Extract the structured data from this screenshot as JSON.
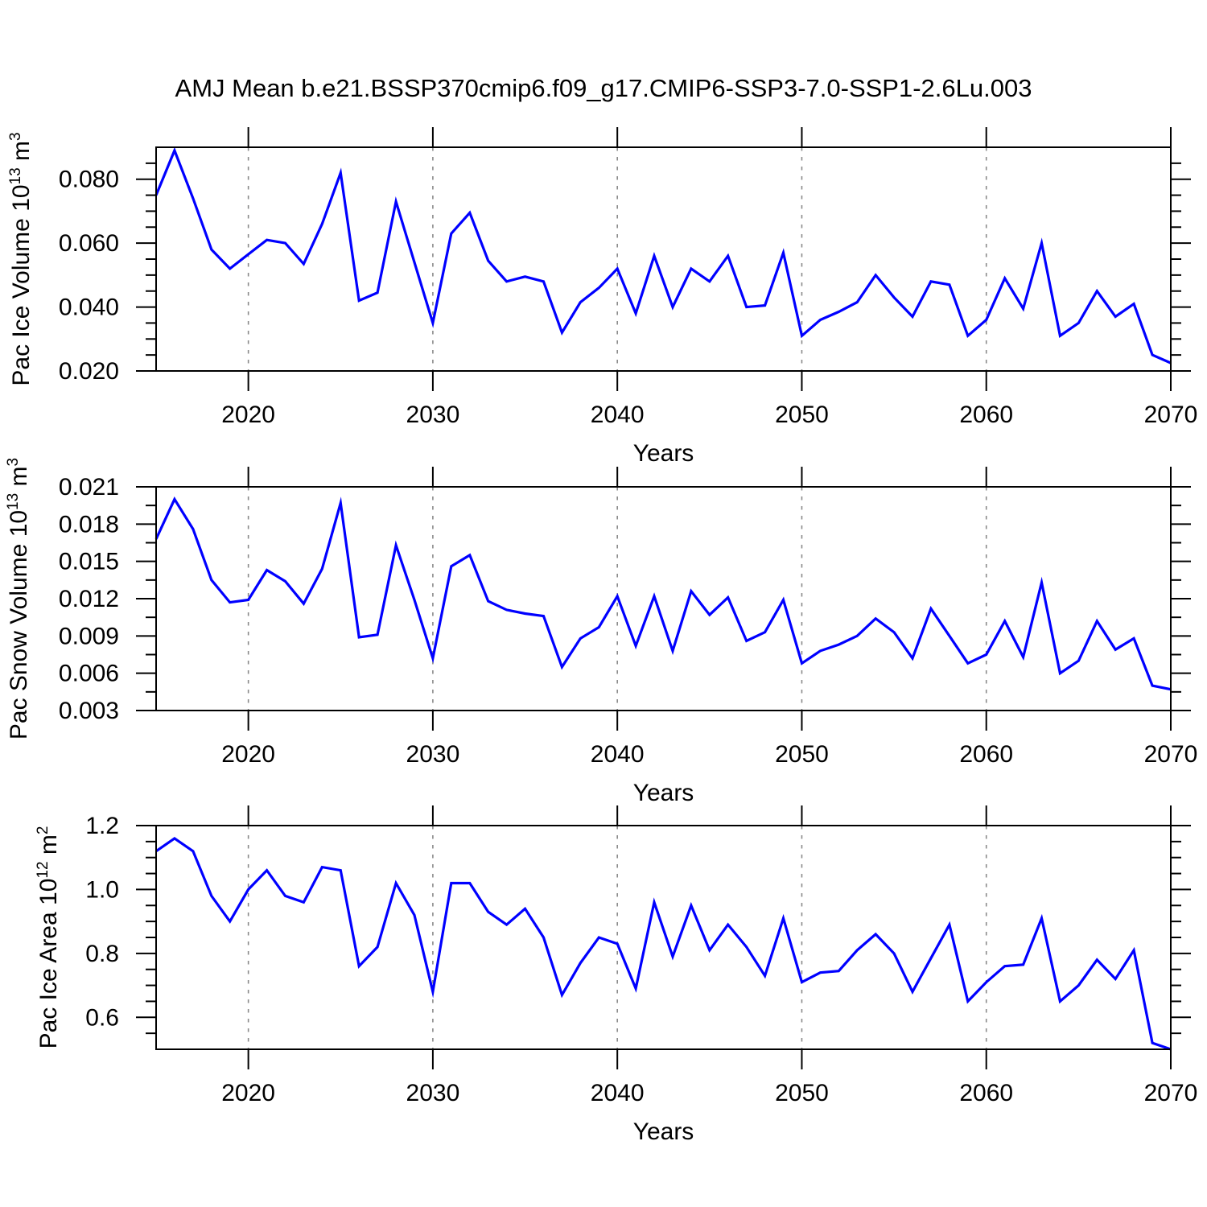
{
  "page": {
    "title": "AMJ Mean b.e21.BSSP370cmip6.f09_g17.CMIP6-SSP3-7.0-SSP1-2.6Lu.003"
  },
  "style": {
    "series_color": "#0000ff",
    "grid_color": "#8a8a8a",
    "axis_color": "#000000"
  },
  "chart_data": [
    {
      "type": "line",
      "name": "pac-ice-volume",
      "xlabel": "Years",
      "ylabel": {
        "prefix": "Pac Ice Volume 10",
        "sup1": "13",
        "mid": " m",
        "sup2": "3"
      },
      "ylim": [
        0.02,
        0.09
      ],
      "yticks": [
        0.02,
        0.04,
        0.06,
        0.08
      ],
      "ytick_labels": [
        "0.020",
        "0.040",
        "0.060",
        "0.080"
      ],
      "yminor_step": 0.005,
      "xlim": [
        2015,
        2070
      ],
      "xticks": [
        2020,
        2030,
        2040,
        2050,
        2060,
        2070
      ],
      "xtick_labels": [
        "2020",
        "2030",
        "2040",
        "2050",
        "2060",
        "2070"
      ],
      "xminor_step": 2,
      "grid_x": [
        2020,
        2030,
        2040,
        2050,
        2060
      ],
      "grid_on": true,
      "legend": "none",
      "years": [
        2015,
        2016,
        2017,
        2018,
        2019,
        2020,
        2021,
        2022,
        2023,
        2024,
        2025,
        2026,
        2027,
        2028,
        2029,
        2030,
        2031,
        2032,
        2033,
        2034,
        2035,
        2036,
        2037,
        2038,
        2039,
        2040,
        2041,
        2042,
        2043,
        2044,
        2045,
        2046,
        2047,
        2048,
        2049,
        2050,
        2051,
        2052,
        2053,
        2054,
        2055,
        2056,
        2057,
        2058,
        2059,
        2060,
        2061,
        2062,
        2063,
        2064,
        2065,
        2066,
        2067,
        2068,
        2069,
        2070
      ],
      "values": [
        0.075,
        0.089,
        0.074,
        0.058,
        0.052,
        0.0565,
        0.061,
        0.06,
        0.0535,
        0.066,
        0.082,
        0.042,
        0.0445,
        0.073,
        0.054,
        0.035,
        0.063,
        0.0695,
        0.0545,
        0.048,
        0.0495,
        0.048,
        0.032,
        0.0415,
        0.046,
        0.052,
        0.038,
        0.056,
        0.04,
        0.052,
        0.048,
        0.056,
        0.04,
        0.0405,
        0.057,
        0.031,
        0.036,
        0.0385,
        0.0415,
        0.05,
        0.043,
        0.037,
        0.048,
        0.047,
        0.031,
        0.036,
        0.049,
        0.0395,
        0.06,
        0.031,
        0.035,
        0.045,
        0.037,
        0.041,
        0.025,
        0.0225
      ]
    },
    {
      "type": "line",
      "name": "pac-snow-volume",
      "xlabel": "Years",
      "ylabel": {
        "prefix": "Pac Snow Volume 10",
        "sup1": "13",
        "mid": " m",
        "sup2": "3"
      },
      "ylim": [
        0.003,
        0.021
      ],
      "yticks": [
        0.003,
        0.006,
        0.009,
        0.012,
        0.015,
        0.018,
        0.021
      ],
      "ytick_labels": [
        "0.003",
        "0.006",
        "0.009",
        "0.012",
        "0.015",
        "0.018",
        "0.021"
      ],
      "yminor_step": 0.0015,
      "xlim": [
        2015,
        2070
      ],
      "xticks": [
        2020,
        2030,
        2040,
        2050,
        2060,
        2070
      ],
      "xtick_labels": [
        "2020",
        "2030",
        "2040",
        "2050",
        "2060",
        "2070"
      ],
      "xminor_step": 2,
      "grid_x": [
        2020,
        2030,
        2040,
        2050,
        2060
      ],
      "grid_on": true,
      "legend": "none",
      "years": [
        2015,
        2016,
        2017,
        2018,
        2019,
        2020,
        2021,
        2022,
        2023,
        2024,
        2025,
        2026,
        2027,
        2028,
        2029,
        2030,
        2031,
        2032,
        2033,
        2034,
        2035,
        2036,
        2037,
        2038,
        2039,
        2040,
        2041,
        2042,
        2043,
        2044,
        2045,
        2046,
        2047,
        2048,
        2049,
        2050,
        2051,
        2052,
        2053,
        2054,
        2055,
        2056,
        2057,
        2058,
        2059,
        2060,
        2061,
        2062,
        2063,
        2064,
        2065,
        2066,
        2067,
        2068,
        2069,
        2070
      ],
      "values": [
        0.0168,
        0.02,
        0.0176,
        0.0135,
        0.0117,
        0.0119,
        0.0143,
        0.0134,
        0.0116,
        0.0144,
        0.0197,
        0.0089,
        0.0091,
        0.0163,
        0.0119,
        0.0072,
        0.0146,
        0.0155,
        0.0118,
        0.0111,
        0.0108,
        0.0106,
        0.0065,
        0.0088,
        0.0097,
        0.0122,
        0.0082,
        0.0122,
        0.0078,
        0.0126,
        0.0107,
        0.0121,
        0.0086,
        0.0093,
        0.0119,
        0.0068,
        0.0078,
        0.0083,
        0.009,
        0.0104,
        0.0093,
        0.0072,
        0.0112,
        0.009,
        0.0068,
        0.0075,
        0.0102,
        0.0073,
        0.0133,
        0.006,
        0.007,
        0.0102,
        0.0079,
        0.0088,
        0.005,
        0.0047
      ]
    },
    {
      "type": "line",
      "name": "pac-ice-area",
      "xlabel": "Years",
      "ylabel": {
        "prefix": "Pac Ice Area 10",
        "sup1": "12",
        "mid": " m",
        "sup2": "2"
      },
      "ylim": [
        0.5,
        1.2
      ],
      "yticks": [
        0.6,
        0.8,
        1.0,
        1.2
      ],
      "ytick_labels": [
        "0.6",
        "0.8",
        "1.0",
        "1.2"
      ],
      "yminor_step": 0.05,
      "xlim": [
        2015,
        2070
      ],
      "xticks": [
        2020,
        2030,
        2040,
        2050,
        2060,
        2070
      ],
      "xtick_labels": [
        "2020",
        "2030",
        "2040",
        "2050",
        "2060",
        "2070"
      ],
      "xminor_step": 2,
      "grid_x": [
        2020,
        2030,
        2040,
        2050,
        2060
      ],
      "grid_on": true,
      "legend": "none",
      "years": [
        2015,
        2016,
        2017,
        2018,
        2019,
        2020,
        2021,
        2022,
        2023,
        2024,
        2025,
        2026,
        2027,
        2028,
        2029,
        2030,
        2031,
        2032,
        2033,
        2034,
        2035,
        2036,
        2037,
        2038,
        2039,
        2040,
        2041,
        2042,
        2043,
        2044,
        2045,
        2046,
        2047,
        2048,
        2049,
        2050,
        2051,
        2052,
        2053,
        2054,
        2055,
        2056,
        2057,
        2058,
        2059,
        2060,
        2061,
        2062,
        2063,
        2064,
        2065,
        2066,
        2067,
        2068,
        2069,
        2070
      ],
      "values": [
        1.12,
        1.16,
        1.12,
        0.98,
        0.9,
        1.0,
        1.06,
        0.98,
        0.96,
        1.07,
        1.06,
        0.76,
        0.82,
        1.02,
        0.92,
        0.68,
        1.02,
        1.02,
        0.93,
        0.89,
        0.94,
        0.85,
        0.67,
        0.77,
        0.85,
        0.83,
        0.69,
        0.96,
        0.79,
        0.95,
        0.81,
        0.89,
        0.82,
        0.73,
        0.91,
        0.71,
        0.74,
        0.745,
        0.81,
        0.86,
        0.8,
        0.68,
        0.785,
        0.89,
        0.65,
        0.71,
        0.76,
        0.765,
        0.91,
        0.65,
        0.7,
        0.78,
        0.72,
        0.81,
        0.52,
        0.5
      ]
    }
  ]
}
